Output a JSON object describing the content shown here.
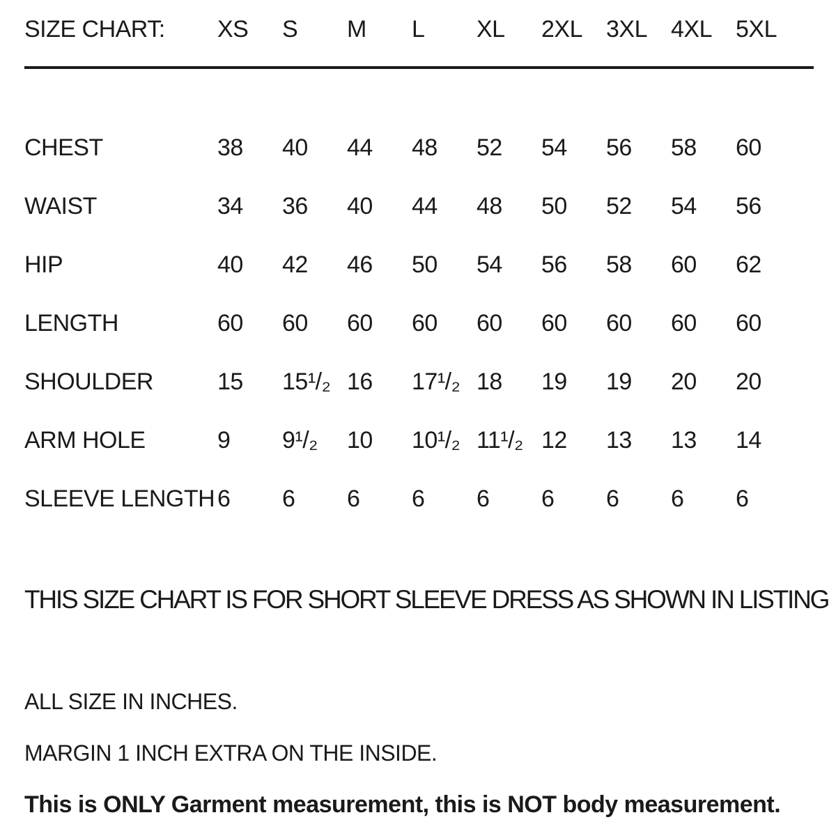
{
  "chart_data": {
    "type": "table",
    "title": "SIZE CHART:",
    "columns": [
      "XS",
      "S",
      "M",
      "L",
      "XL",
      "2XL",
      "3XL",
      "4XL",
      "5XL"
    ],
    "rows": [
      {
        "label": "CHEST",
        "values": [
          "38",
          "40",
          "44",
          "48",
          "52",
          "54",
          "56",
          "58",
          "60"
        ]
      },
      {
        "label": "WAIST",
        "values": [
          "34",
          "36",
          "40",
          "44",
          "48",
          "50",
          "52",
          "54",
          "56"
        ]
      },
      {
        "label": "HIP",
        "values": [
          "40",
          "42",
          "46",
          "50",
          "54",
          "56",
          "58",
          "60",
          "62"
        ]
      },
      {
        "label": "LENGTH",
        "values": [
          "60",
          "60",
          "60",
          "60",
          "60",
          "60",
          "60",
          "60",
          "60"
        ]
      },
      {
        "label": "SHOULDER",
        "values": [
          "15",
          "15¹/₂",
          "16",
          "17¹/₂",
          "18",
          "19",
          "19",
          "20",
          "20"
        ]
      },
      {
        "label": "ARM HOLE",
        "values": [
          "9",
          "9¹/₂",
          "10",
          "10¹/₂",
          "11¹/₂",
          "12",
          "13",
          "13",
          "14"
        ]
      },
      {
        "label": "SLEEVE LENGTH",
        "values": [
          "6",
          "6",
          "6",
          "6",
          "6",
          "6",
          "6",
          "6",
          "6"
        ]
      }
    ],
    "units": "inches",
    "text_color": "#1a1a1a",
    "background_color": "#ffffff"
  },
  "notes": {
    "listing": "THIS SIZE CHART IS FOR SHORT SLEEVE DRESS AS SHOWN IN LISTING",
    "units": "ALL SIZE IN INCHES.",
    "margin": "MARGIN 1 INCH EXTRA ON THE INSIDE.",
    "disclaimer": "This is ONLY Garment measurement, this is NOT body measurement."
  }
}
